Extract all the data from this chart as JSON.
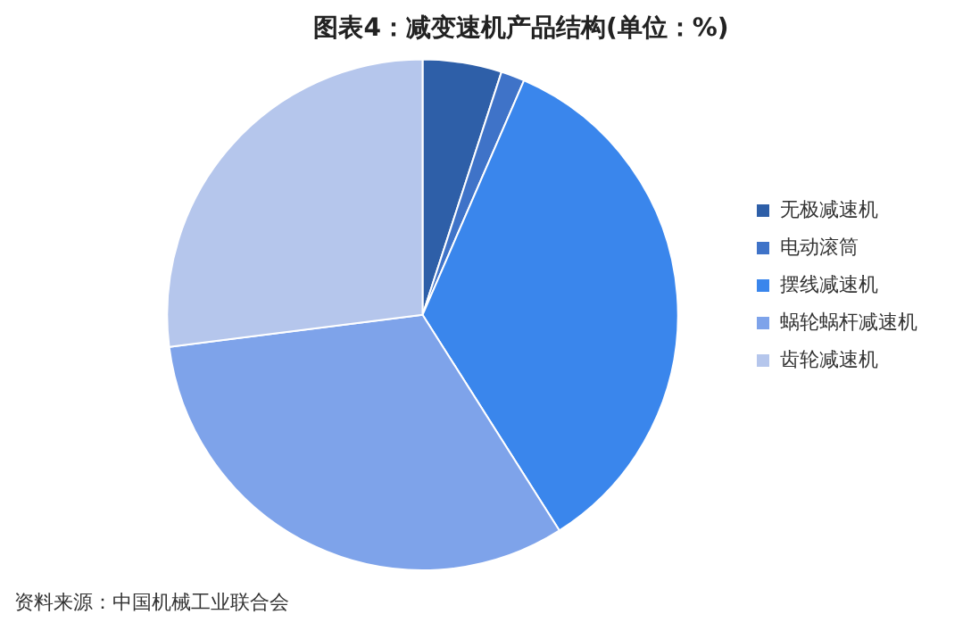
{
  "chart_data": {
    "type": "pie",
    "title": "图表4：减变速机产品结构(单位：%)",
    "categories": [
      "无极减速机",
      "电动滚筒",
      "摆线减速机",
      "蜗轮蜗杆减速机",
      "齿轮减速机"
    ],
    "values": [
      5,
      1.5,
      34.5,
      32,
      27
    ],
    "colors": [
      "#2e5fa8",
      "#3f73c8",
      "#3a86ec",
      "#7ea3ea",
      "#b5c6ec"
    ],
    "legend": "right",
    "annotations": [
      "资料来源：中国机械工业联合会"
    ]
  }
}
